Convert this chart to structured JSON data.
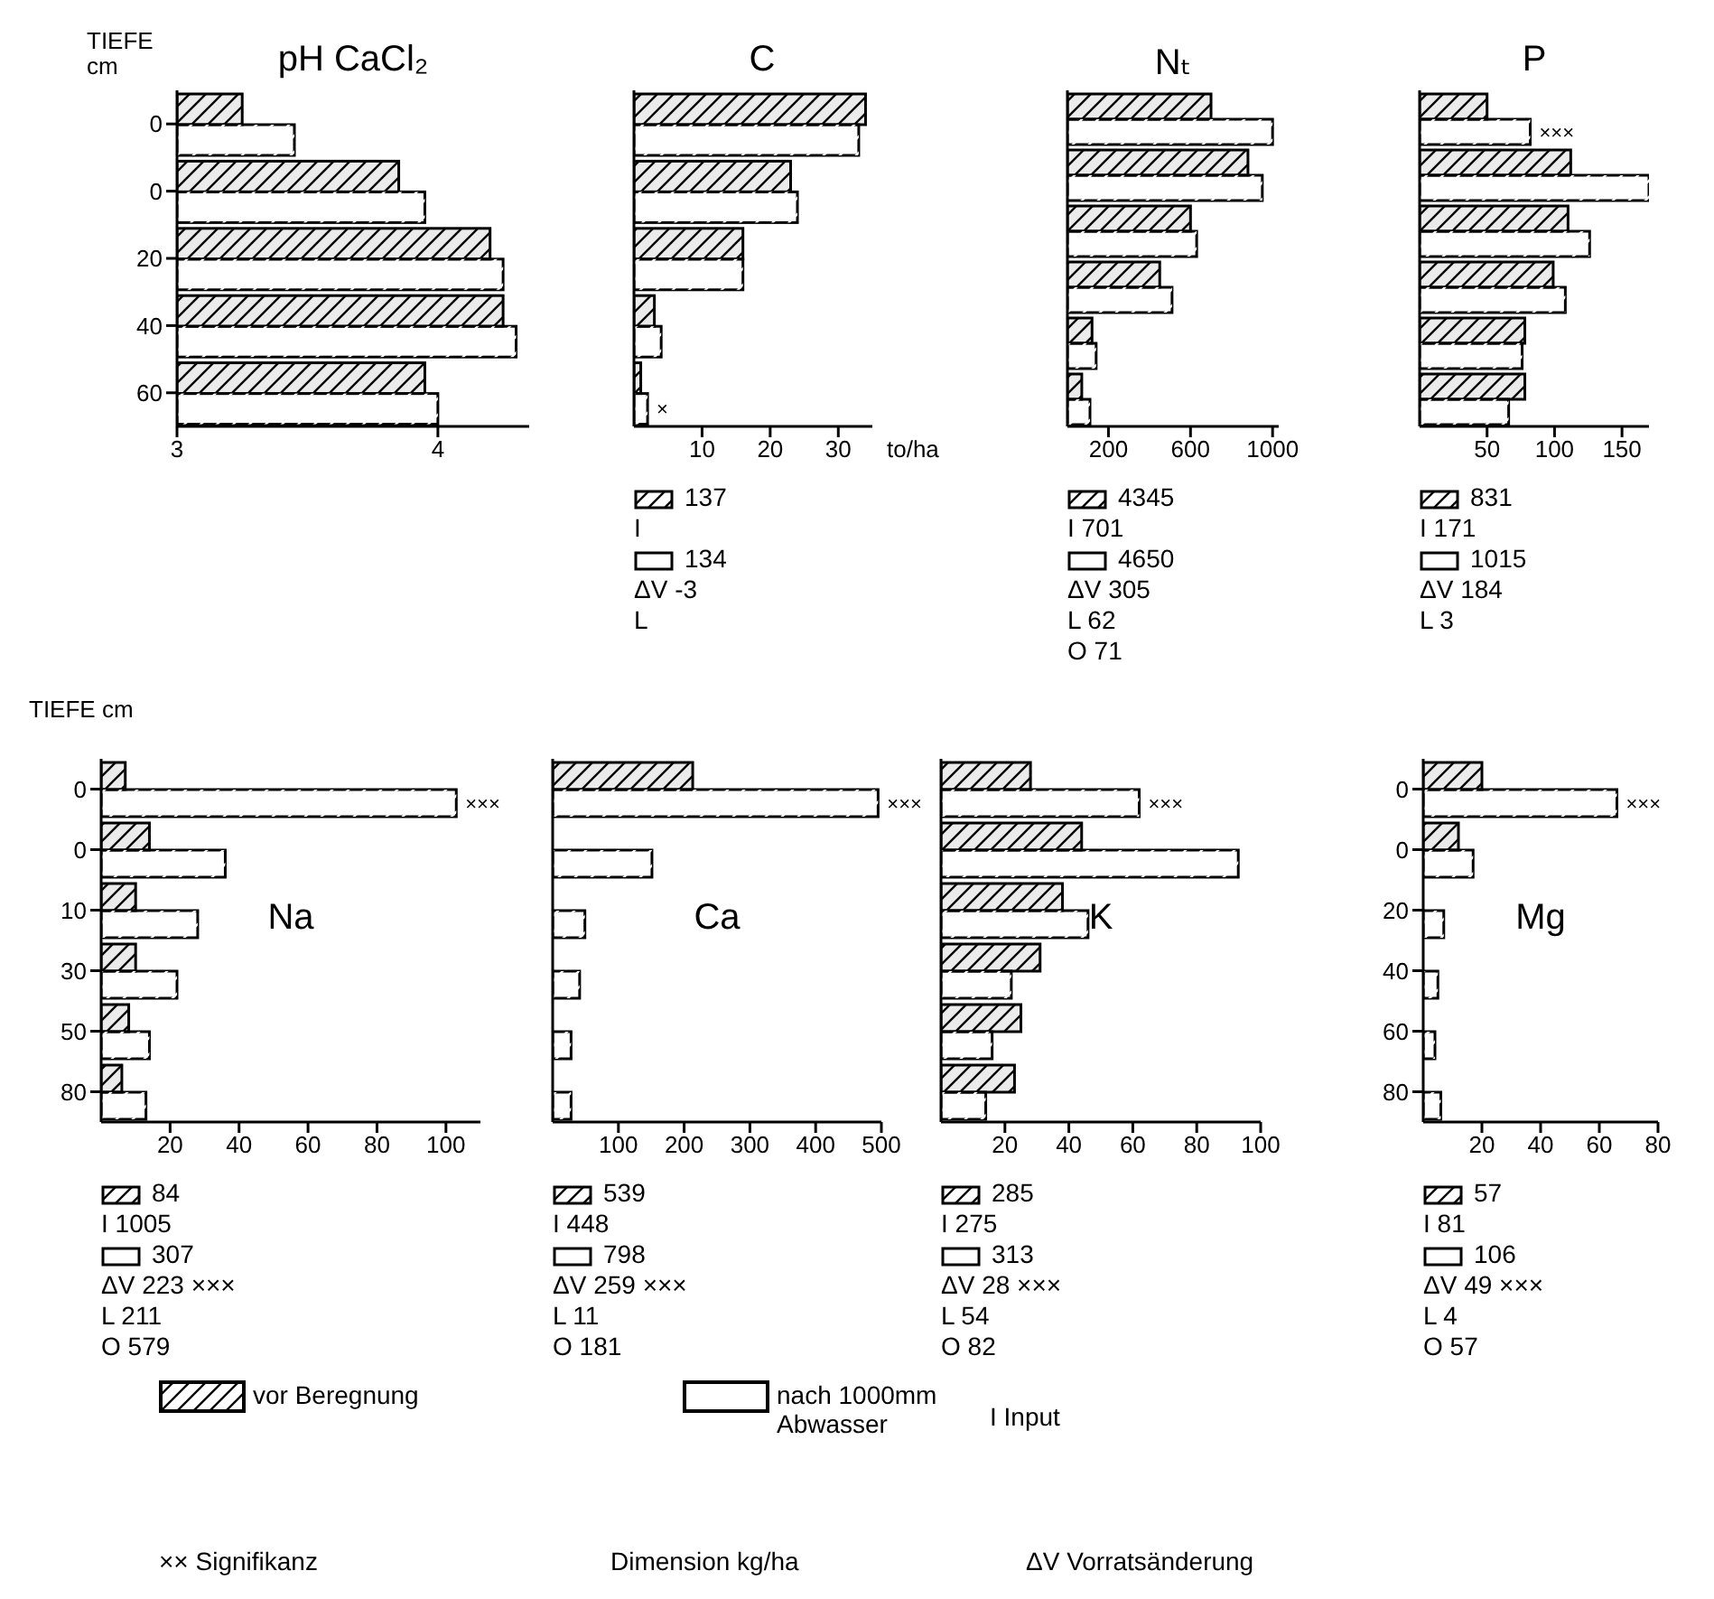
{
  "chart_data": [
    {
      "type": "bar",
      "orientation": "horizontal",
      "title": "pH CaCl₂",
      "ylabel": "TIEFE cm",
      "categories": [
        "0",
        "0",
        "20",
        "40",
        "60"
      ],
      "series": [
        {
          "color": "#000000",
          "values": [
            3.25,
            3.85,
            4.2,
            4.25,
            3.95
          ]
        },
        {
          "color": "#ffffff",
          "values": [
            3.45,
            3.95,
            4.25,
            4.3,
            4.0
          ]
        }
      ],
      "xlim": [
        3,
        4.35
      ],
      "xticks": [
        3,
        4
      ]
    },
    {
      "type": "bar",
      "orientation": "horizontal",
      "title": "C",
      "xlabel": "to/ha",
      "categories": [
        null,
        null,
        null,
        null,
        null
      ],
      "tick_labels": "x",
      "series": [
        {
          "color": "#000000",
          "values": [
            34,
            23,
            16,
            3,
            1
          ]
        },
        {
          "color": "#ffffff",
          "values": [
            33,
            24,
            16,
            4,
            2
          ],
          "value_labels": [
            null,
            null,
            null,
            null,
            "×"
          ]
        }
      ],
      "xlim": [
        0,
        35
      ],
      "xticks": [
        10,
        20,
        30
      ],
      "annotations": [
        "137",
        "I",
        "134",
        "ΔV -3",
        "L"
      ]
    },
    {
      "type": "bar",
      "orientation": "horizontal",
      "title": "Nₜ",
      "categories": [
        null,
        null,
        null,
        null,
        null,
        null
      ],
      "tick_labels": "x",
      "series": [
        {
          "color": "#000000",
          "values": [
            700,
            880,
            600,
            450,
            120,
            70
          ]
        },
        {
          "color": "#ffffff",
          "values": [
            1000,
            950,
            630,
            510,
            140,
            110
          ]
        }
      ],
      "xlim": [
        0,
        1030
      ],
      "xticks": [
        200,
        600,
        1000
      ],
      "annotations": [
        "4345",
        "I 701",
        "4650",
        "ΔV 305",
        "L 62",
        "O 71"
      ]
    },
    {
      "type": "bar",
      "orientation": "horizontal",
      "title": "P",
      "categories": [
        null,
        null,
        null,
        null,
        null,
        null
      ],
      "tick_labels": "x",
      "series": [
        {
          "color": "#000000",
          "values": [
            50,
            112,
            110,
            99,
            78,
            78
          ]
        },
        {
          "color": "#ffffff",
          "values": [
            82,
            170,
            126,
            108,
            76,
            66
          ],
          "value_labels": [
            "×××",
            null,
            null,
            null,
            null,
            null
          ]
        }
      ],
      "xlim": [
        0,
        170
      ],
      "xticks": [
        50,
        100,
        150
      ],
      "annotations": [
        "831",
        "I 171",
        "1015",
        "ΔV 184",
        "L 3"
      ]
    },
    {
      "type": "bar",
      "orientation": "horizontal",
      "title": "Na",
      "ylabel": "TIEFE cm",
      "categories": [
        "0",
        "0",
        "10",
        "30",
        "50",
        "80"
      ],
      "legend": "bottom",
      "series": [
        {
          "name": "vor Beregnung",
          "color": "#000000",
          "values": [
            7,
            14,
            10,
            10,
            8,
            6
          ]
        },
        {
          "name": "nach 1000mm Abwasser",
          "color": "#ffffff",
          "values": [
            103,
            36,
            28,
            22,
            14,
            13
          ],
          "value_labels": [
            "×××",
            null,
            null,
            null,
            null,
            null
          ]
        }
      ],
      "xlim": [
        0,
        110
      ],
      "xticks": [
        20,
        40,
        60,
        80,
        100
      ],
      "annotations": [
        "84",
        "I 1005",
        "307",
        "ΔV 223 ×××",
        "L 211",
        "O 579"
      ]
    },
    {
      "type": "bar",
      "orientation": "horizontal",
      "title": "Ca",
      "categories": [
        null,
        null,
        null,
        null,
        null,
        null
      ],
      "tick_labels": "x",
      "series": [
        {
          "color": "#000000",
          "values": [
            213,
            null,
            null,
            null,
            null,
            null
          ]
        },
        {
          "color": "#ffffff",
          "values": [
            495,
            151,
            49,
            41,
            28,
            28
          ],
          "value_labels": [
            "×××",
            null,
            null,
            null,
            null,
            null
          ]
        }
      ],
      "xlim": [
        0,
        500
      ],
      "xticks": [
        100,
        200,
        300,
        400,
        500
      ],
      "annotations": [
        "539",
        "I 448",
        "798",
        "ΔV 259 ×××",
        "L 11",
        "O 181"
      ]
    },
    {
      "type": "bar",
      "orientation": "horizontal",
      "title": "K",
      "categories": [
        null,
        null,
        null,
        null,
        null,
        null
      ],
      "tick_labels": "x",
      "series": [
        {
          "color": "#000000",
          "values": [
            28,
            44,
            38,
            31,
            25,
            23
          ]
        },
        {
          "color": "#ffffff",
          "values": [
            62,
            93,
            46,
            22,
            16,
            14
          ],
          "value_labels": [
            "×××",
            null,
            null,
            null,
            null,
            null
          ]
        }
      ],
      "xlim": [
        0,
        100
      ],
      "xticks": [
        20,
        40,
        60,
        80,
        100
      ],
      "annotations": [
        "285",
        "I 275",
        "313",
        "ΔV 28 ×××",
        "L 54",
        "O 82"
      ]
    },
    {
      "type": "bar",
      "orientation": "horizontal",
      "title": "Mg",
      "categories": [
        "0",
        "0",
        "20",
        "40",
        "60",
        "80"
      ],
      "series": [
        {
          "color": "#000000",
          "values": [
            20,
            12,
            null,
            null,
            null,
            null
          ]
        },
        {
          "color": "#ffffff",
          "values": [
            66,
            17,
            7,
            5,
            4,
            6
          ],
          "value_labels": [
            "×××",
            null,
            null,
            null,
            null,
            null
          ]
        }
      ],
      "xlim": [
        0,
        80
      ],
      "xticks": [
        20,
        40,
        60,
        80
      ],
      "annotations": [
        "57",
        "I 81",
        "106",
        "ΔV 49 ×××",
        "L 4",
        "O 57"
      ]
    },
    {
      "type": "other",
      "annotations": [
        "I Input",
        "×× Signifikanz",
        "Dimension kg/ha",
        "ΔV Vorratsänderung"
      ]
    }
  ]
}
